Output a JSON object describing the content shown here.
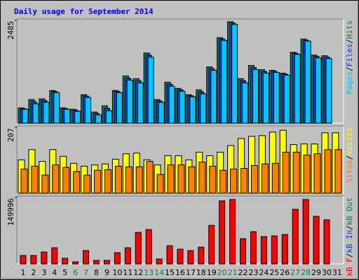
{
  "chart_data": [
    {
      "type": "bar",
      "title": "Daily usage for September 2014",
      "separator": "/",
      "ylim": [
        0,
        2485
      ],
      "yticks": [
        2485
      ],
      "series": [
        {
          "name": "Hits",
          "color": "#00805c",
          "values": [
            369,
            571,
            588,
            789,
            369,
            336,
            688,
            269,
            420,
            789,
            1142,
            1075,
            1696,
            571,
            991,
            840,
            688,
            806,
            1360,
            2065,
            2451,
            1075,
            1394,
            1293,
            1276,
            1209,
            1713,
            2032,
            1645,
            1629,
            0
          ]
        },
        {
          "name": "Files",
          "color": "#0040ff",
          "values": [
            352,
            520,
            546,
            764,
            352,
            310,
            655,
            235,
            361,
            764,
            1090,
            1025,
            1645,
            537,
            940,
            806,
            663,
            755,
            1318,
            2031,
            2417,
            1025,
            1343,
            1251,
            1251,
            1184,
            1687,
            2006,
            1611,
            1595,
            0
          ]
        },
        {
          "name": "Pages",
          "color": "#00c8ff",
          "values": [
            336,
            470,
            504,
            739,
            336,
            285,
            621,
            201,
            302,
            739,
            1041,
            974,
            1595,
            504,
            890,
            772,
            638,
            705,
            1276,
            1998,
            2384,
            974,
            1293,
            1209,
            1226,
            1159,
            1662,
            1981,
            1578,
            1561,
            0
          ]
        }
      ]
    },
    {
      "type": "bar",
      "ylim": [
        0,
        207
      ],
      "yticks": [
        207
      ],
      "series": [
        {
          "name": "Visits",
          "color": "#ffff00",
          "values": [
            105,
            137,
            100,
            137,
            116,
            94,
            85,
            89,
            92,
            107,
            124,
            126,
            105,
            89,
            118,
            118,
            105,
            129,
            118,
            129,
            150,
            172,
            179,
            181,
            192,
            198,
            153,
            155,
            155,
            190,
            190
          ]
        },
        {
          "name": "Sites",
          "color": "#ff8000",
          "values": [
            76,
            85,
            57,
            89,
            81,
            68,
            57,
            72,
            74,
            85,
            83,
            83,
            100,
            59,
            89,
            89,
            83,
            98,
            85,
            72,
            76,
            78,
            87,
            92,
            94,
            129,
            129,
            120,
            124,
            137,
            137
          ]
        }
      ]
    },
    {
      "type": "bar",
      "ylim": [
        0,
        149996
      ],
      "yticks": [
        149996
      ],
      "categories": [
        "1",
        "2",
        "3",
        "4",
        "5",
        "6",
        "7",
        "8",
        "9",
        "10",
        "11",
        "12",
        "13",
        "14",
        "15",
        "16",
        "17",
        "18",
        "19",
        "20",
        "21",
        "22",
        "23",
        "24",
        "25",
        "26",
        "27",
        "28",
        "29",
        "30",
        "31"
      ],
      "highlight_color": "#00805c",
      "highlight_indices": [
        5,
        6,
        12,
        13,
        19,
        20,
        26,
        27
      ],
      "series": [
        {
          "name": "kB Out",
          "color": "#00805c",
          "values": [
            0,
            0,
            0,
            0,
            0,
            0,
            0,
            0,
            0,
            0,
            0,
            0,
            0,
            0,
            0,
            0,
            0,
            0,
            0,
            0,
            0,
            0,
            0,
            0,
            0,
            0,
            0,
            0,
            0,
            0,
            0
          ]
        },
        {
          "name": "kB In",
          "color": "#0040ff",
          "values": [
            0,
            0,
            0,
            0,
            0,
            0,
            0,
            0,
            0,
            0,
            0,
            0,
            0,
            0,
            0,
            0,
            0,
            0,
            0,
            0,
            0,
            0,
            0,
            0,
            0,
            0,
            0,
            0,
            0,
            0,
            0
          ]
        },
        {
          "name": "kB F",
          "color": "#ff0000",
          "values": [
            18948,
            18948,
            26843,
            36318,
            12632,
            4737,
            30000,
            7895,
            7895,
            25264,
            36318,
            71055,
            77371,
            11053,
            41054,
            33159,
            30001,
            37896,
            86845,
            142110,
            145268,
            56844,
            72634,
            61581,
            63160,
            66318,
            123162,
            145268,
            107371,
            99477,
            0
          ]
        }
      ]
    }
  ]
}
